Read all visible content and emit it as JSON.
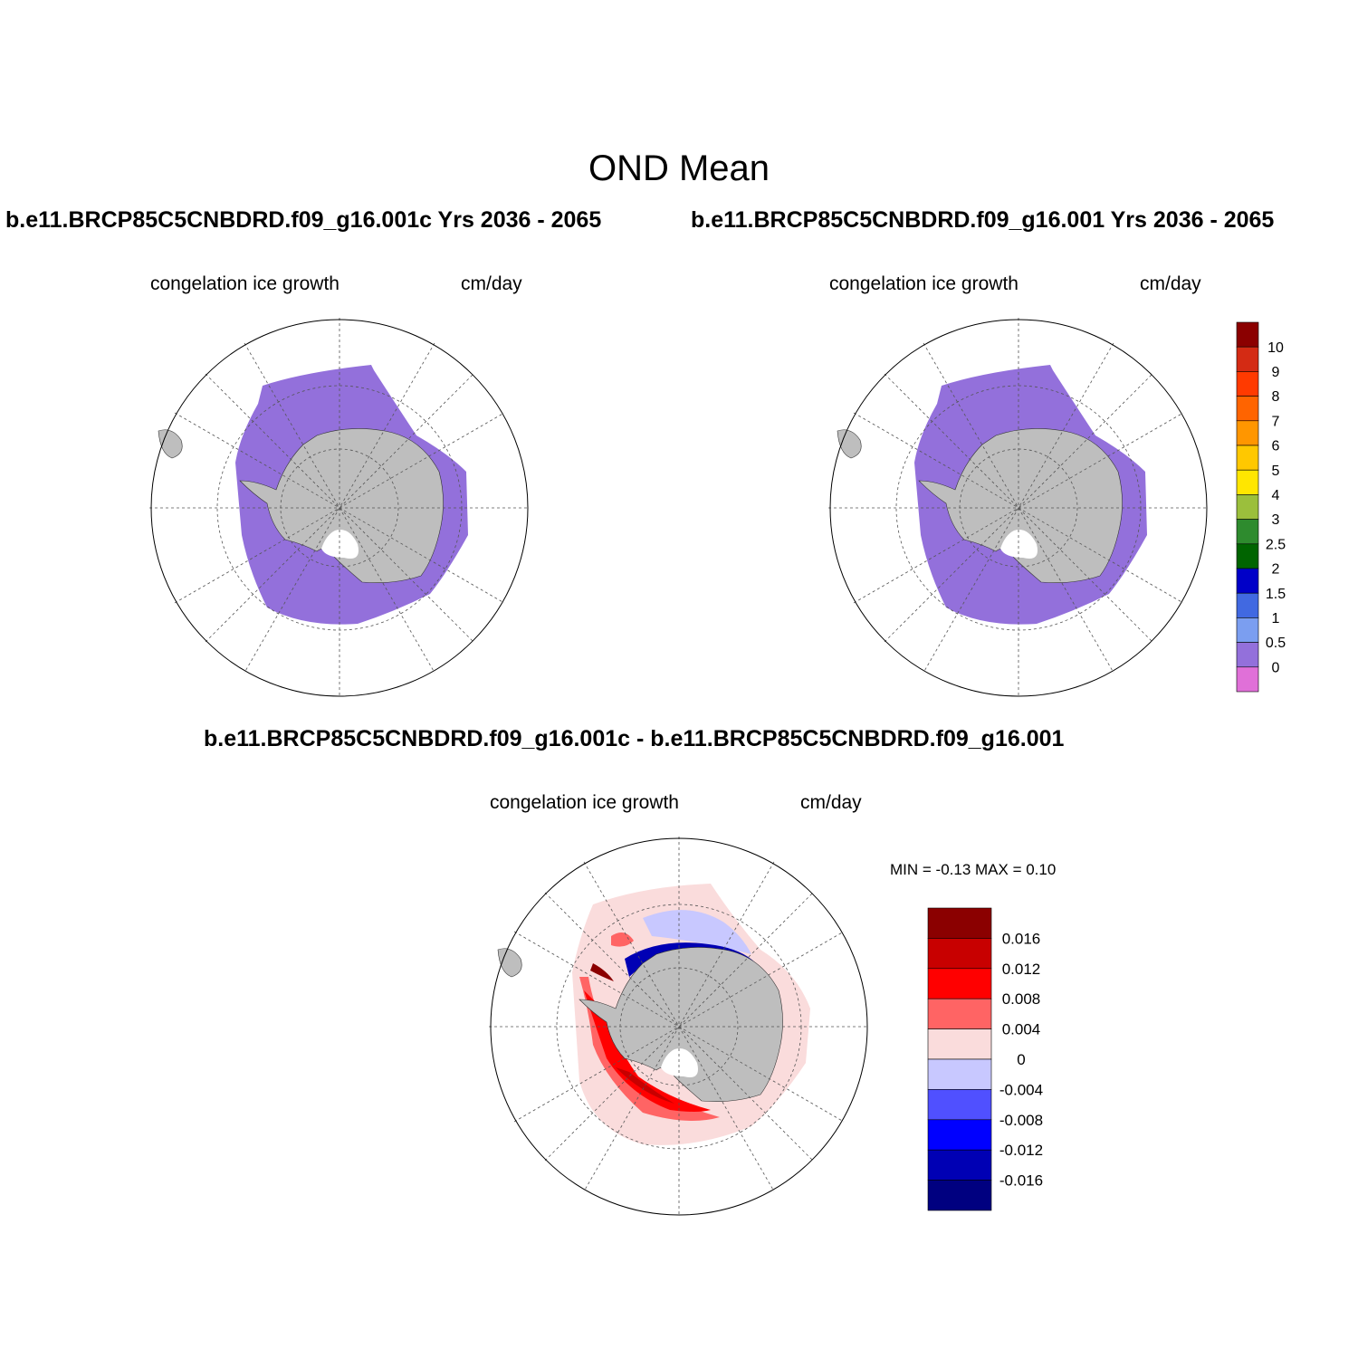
{
  "header": {
    "title": "OND Mean",
    "run_left": "b.e11.BRCP85C5CNBDRD.f09_g16.001c  Yrs 2036 - 2065",
    "run_right": "b.e11.BRCP85C5CNBDRD.f09_g16.001  Yrs 2036 - 2065",
    "diff_title": "b.e11.BRCP85C5CNBDRD.f09_g16.001c - b.e11.BRCP85C5CNBDRD.f09_g16.001"
  },
  "panels": {
    "left": {
      "variable": "congelation ice growth",
      "units": "cm/day"
    },
    "right": {
      "variable": "congelation ice growth",
      "units": "cm/day"
    },
    "diff": {
      "variable": "congelation ice growth",
      "units": "cm/day",
      "minmax": "MIN =  -0.13 MAX =   0.10"
    }
  },
  "colors": {
    "ice_purple": "#9370db",
    "land": "#bebebe",
    "grid": "#555555"
  },
  "chart_data": [
    {
      "type": "heatmap",
      "projection": "south-polar-stereographic",
      "dataset": "b.e11.BRCP85C5CNBDRD.f09_g16.001c",
      "field": "congelation ice growth",
      "units": "cm/day",
      "dominant_level": "0 to 0.5",
      "colorbar": {
        "labels": [
          "10",
          "9",
          "8",
          "7",
          "6",
          "5",
          "4",
          "3",
          "2.5",
          "2",
          "1.5",
          "1",
          "0.5",
          "0"
        ],
        "colors": [
          "#8b0000",
          "#d42b14",
          "#ff3a00",
          "#ff6400",
          "#ff9600",
          "#ffc800",
          "#ffe600",
          "#9bbf3c",
          "#2e8b2e",
          "#006400",
          "#0000c8",
          "#4169e1",
          "#7b9ef0",
          "#9370db",
          "#e070d8"
        ]
      }
    },
    {
      "type": "heatmap",
      "projection": "south-polar-stereographic",
      "dataset": "b.e11.BRCP85C5CNBDRD.f09_g16.001",
      "field": "congelation ice growth",
      "units": "cm/day",
      "dominant_level": "0 to 0.5"
    },
    {
      "type": "heatmap",
      "projection": "south-polar-stereographic",
      "field": "congelation ice growth difference",
      "units": "cm/day",
      "min": -0.13,
      "max": 0.1,
      "colorbar": {
        "labels": [
          "0.016",
          "0.012",
          "0.008",
          "0.004",
          "0",
          "-0.004",
          "-0.008",
          "-0.012",
          "-0.016"
        ],
        "colors": [
          "#8b0000",
          "#c80000",
          "#ff0000",
          "#ff6464",
          "#fadcdc",
          "#c8c8ff",
          "#5050ff",
          "#0000ff",
          "#0000b4",
          "#000080"
        ]
      }
    }
  ]
}
